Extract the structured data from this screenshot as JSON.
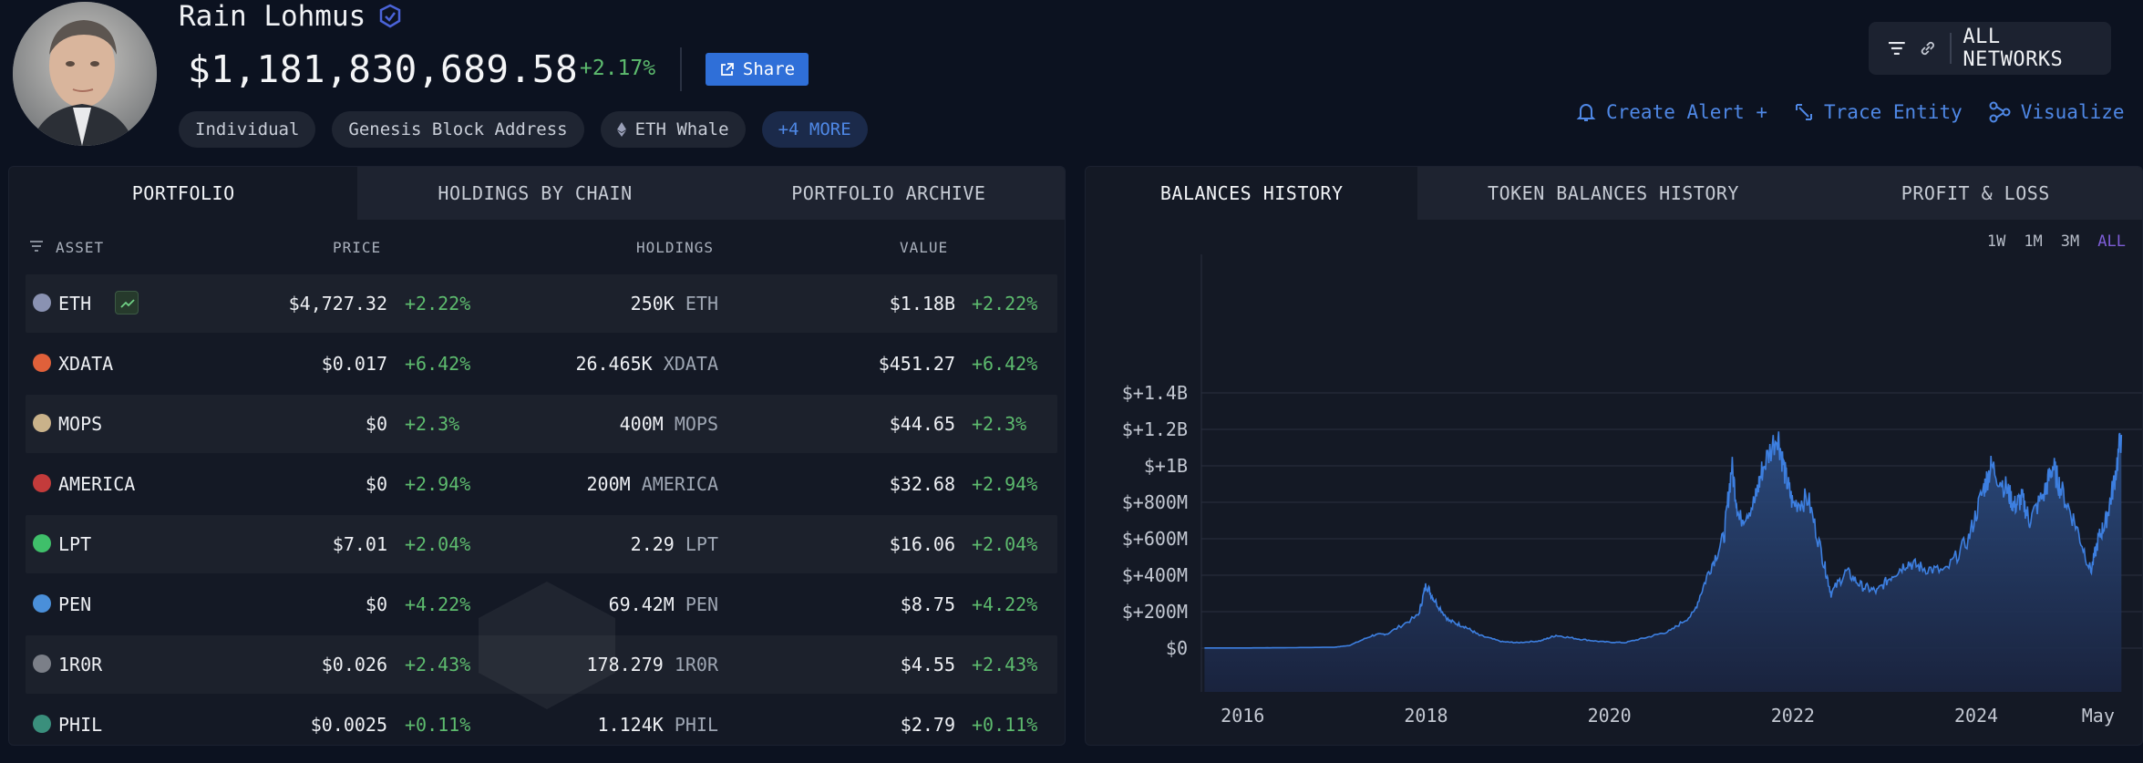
{
  "entity": {
    "name": "Rain Lohmus",
    "balance": "$1,181,830,689.58",
    "balance_change": "+2.17%",
    "share_label": "Share",
    "tags": [
      "Individual",
      "Genesis Block Address",
      "ETH Whale"
    ],
    "more_tag": "+4 MORE"
  },
  "network": {
    "label": "ALL NETWORKS"
  },
  "actions": {
    "create_alert": "Create Alert +",
    "trace_entity": "Trace Entity",
    "visualize": "Visualize"
  },
  "left_tabs": [
    "PORTFOLIO",
    "HOLDINGS BY CHAIN",
    "PORTFOLIO ARCHIVE"
  ],
  "table": {
    "headers": {
      "asset": "ASSET",
      "price": "PRICE",
      "holdings": "HOLDINGS",
      "value": "VALUE"
    },
    "rows": [
      {
        "ticker": "ETH",
        "price": "$4,727.32",
        "price_change": "+2.22%",
        "holdings": "250K",
        "unit": "ETH",
        "value": "$1.18B",
        "value_change": "+2.22%",
        "icon": "eth-icon",
        "color": "#8a92b2"
      },
      {
        "ticker": "XDATA",
        "price": "$0.017",
        "price_change": "+6.42%",
        "holdings": "26.465K",
        "unit": "XDATA",
        "value": "$451.27",
        "value_change": "+6.42%",
        "icon": "xdata-icon",
        "color": "#e0603a"
      },
      {
        "ticker": "MOPS",
        "price": "$0",
        "price_change": "+2.3%",
        "holdings": "400M",
        "unit": "MOPS",
        "value": "$44.65",
        "value_change": "+2.3%",
        "icon": "mops-icon",
        "color": "#c9b28a"
      },
      {
        "ticker": "AMERICA",
        "price": "$0",
        "price_change": "+2.94%",
        "holdings": "200M",
        "unit": "AMERICA",
        "value": "$32.68",
        "value_change": "+2.94%",
        "icon": "us-flag-icon",
        "color": "#c33b3b"
      },
      {
        "ticker": "LPT",
        "price": "$7.01",
        "price_change": "+2.04%",
        "holdings": "2.29",
        "unit": "LPT",
        "value": "$16.06",
        "value_change": "+2.04%",
        "icon": "lpt-icon",
        "color": "#3fbf6a"
      },
      {
        "ticker": "PEN",
        "price": "$0",
        "price_change": "+4.22%",
        "holdings": "69.42M",
        "unit": "PEN",
        "value": "$8.75",
        "value_change": "+4.22%",
        "icon": "pen-icon",
        "color": "#4a8fd9"
      },
      {
        "ticker": "1R0R",
        "price": "$0.026",
        "price_change": "+2.43%",
        "holdings": "178.279",
        "unit": "1R0R",
        "value": "$4.55",
        "value_change": "+2.43%",
        "icon": "1r0r-icon",
        "color": "#7b7f88"
      },
      {
        "ticker": "PHIL",
        "price": "$0.0025",
        "price_change": "+0.11%",
        "holdings": "1.124K",
        "unit": "PHIL",
        "value": "$2.79",
        "value_change": "+0.11%",
        "icon": "phil-icon",
        "color": "#3a8f7c"
      }
    ]
  },
  "right_tabs": [
    "BALANCES HISTORY",
    "TOKEN BALANCES HISTORY",
    "PROFIT & LOSS"
  ],
  "ranges": [
    "1W",
    "1M",
    "3M",
    "ALL"
  ],
  "active_range": "ALL",
  "colors": {
    "accent": "#2f6fd8",
    "positive": "#5dbb6e",
    "line": "#3d7fe0"
  },
  "chart_data": {
    "type": "area",
    "title": "",
    "xlabel": "",
    "ylabel": "",
    "x_tick_labels": [
      "2016",
      "2018",
      "2020",
      "2022",
      "2024",
      "May"
    ],
    "y_tick_labels": [
      "$0",
      "$+200M",
      "$+400M",
      "$+600M",
      "$+800M",
      "$+1B",
      "$+1.2B",
      "$+1.4B"
    ],
    "ylim": [
      0,
      1400000000
    ],
    "grid": true,
    "series": [
      {
        "x": [
          "2015-08",
          "2016-01",
          "2016-06",
          "2017-01",
          "2017-03",
          "2017-06",
          "2017-08",
          "2017-12",
          "2018-01",
          "2018-02",
          "2018-04",
          "2018-06",
          "2018-08",
          "2018-11",
          "2019-01",
          "2019-04",
          "2019-06",
          "2019-09",
          "2019-12",
          "2020-03",
          "2020-06",
          "2020-09",
          "2020-12",
          "2021-02",
          "2021-04",
          "2021-05",
          "2021-06",
          "2021-08",
          "2021-09",
          "2021-11",
          "2021-12",
          "2022-01",
          "2022-03",
          "2022-05",
          "2022-06",
          "2022-08",
          "2022-10",
          "2022-12",
          "2023-02",
          "2023-04",
          "2023-06",
          "2023-09",
          "2023-12",
          "2024-02",
          "2024-03",
          "2024-05",
          "2024-06",
          "2024-07",
          "2024-08",
          "2024-10",
          "2024-11",
          "2024-12",
          "2025-02",
          "2025-04",
          "2025-05",
          "2025-06",
          "2025-07",
          "2025-08"
        ],
        "y": [
          1000000,
          1000000,
          2000000,
          5000000,
          15000000,
          70000000,
          80000000,
          180000000,
          350000000,
          270000000,
          150000000,
          120000000,
          70000000,
          35000000,
          30000000,
          40000000,
          70000000,
          50000000,
          35000000,
          30000000,
          60000000,
          95000000,
          190000000,
          420000000,
          610000000,
          1000000000,
          700000000,
          800000000,
          980000000,
          1180000000,
          950000000,
          790000000,
          820000000,
          480000000,
          300000000,
          420000000,
          340000000,
          310000000,
          400000000,
          470000000,
          440000000,
          420000000,
          600000000,
          880000000,
          1000000000,
          870000000,
          780000000,
          820000000,
          700000000,
          860000000,
          1000000000,
          880000000,
          680000000,
          420000000,
          600000000,
          700000000,
          900000000,
          1170000000
        ]
      }
    ]
  }
}
